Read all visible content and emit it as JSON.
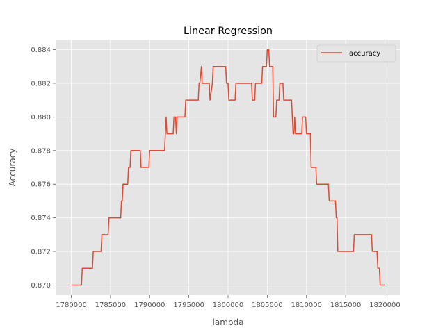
{
  "chart_data": {
    "type": "line",
    "title": "Linear Regression",
    "xlabel": "lambda",
    "ylabel": "Accuracy",
    "xlim": [
      1778000,
      1822000
    ],
    "ylim": [
      0.8694,
      0.8846
    ],
    "x_ticks": [
      1780000,
      1785000,
      1790000,
      1795000,
      1800000,
      1805000,
      1810000,
      1815000,
      1820000
    ],
    "x_tick_labels": [
      "1780000",
      "1785000",
      "1790000",
      "1795000",
      "1800000",
      "1805000",
      "1810000",
      "1815000",
      "1820000"
    ],
    "y_ticks": [
      0.87,
      0.872,
      0.874,
      0.876,
      0.878,
      0.88,
      0.882,
      0.884
    ],
    "y_tick_labels": [
      "0.870",
      "0.872",
      "0.874",
      "0.876",
      "0.878",
      "0.880",
      "0.882",
      "0.884"
    ],
    "grid": true,
    "legend_position": "top-right",
    "series": [
      {
        "name": "accuracy",
        "color": "#E24A33",
        "x": [
          1780000,
          1781300,
          1781400,
          1782700,
          1782800,
          1783800,
          1783900,
          1784700,
          1784800,
          1786300,
          1786400,
          1786500,
          1786600,
          1787200,
          1787300,
          1787500,
          1787600,
          1788800,
          1788900,
          1789900,
          1790000,
          1791900,
          1792000,
          1792100,
          1792200,
          1792300,
          1793000,
          1793100,
          1793300,
          1793400,
          1793500,
          1793600,
          1794500,
          1794600,
          1796200,
          1796300,
          1796400,
          1796600,
          1796700,
          1796900,
          1797000,
          1797600,
          1797700,
          1798000,
          1798100,
          1799700,
          1799800,
          1800000,
          1800100,
          1800900,
          1801000,
          1803000,
          1803100,
          1803400,
          1803500,
          1804300,
          1804400,
          1804900,
          1805000,
          1805200,
          1805300,
          1805700,
          1805800,
          1806100,
          1806200,
          1806500,
          1806600,
          1807000,
          1807100,
          1808100,
          1808200,
          1808300,
          1808400,
          1808500,
          1808600,
          1809400,
          1809500,
          1809900,
          1810000,
          1810500,
          1810600,
          1811200,
          1811300,
          1812800,
          1812900,
          1813700,
          1813800,
          1813900,
          1814000,
          1816000,
          1816100,
          1818300,
          1818400,
          1819000,
          1819100,
          1819300,
          1819400,
          1820000
        ],
        "values": [
          0.87,
          0.87,
          0.871,
          0.871,
          0.872,
          0.872,
          0.873,
          0.873,
          0.874,
          0.874,
          0.875,
          0.875,
          0.876,
          0.876,
          0.877,
          0.877,
          0.878,
          0.878,
          0.877,
          0.877,
          0.878,
          0.878,
          0.879,
          0.88,
          0.879,
          0.879,
          0.879,
          0.88,
          0.88,
          0.879,
          0.88,
          0.88,
          0.88,
          0.881,
          0.881,
          0.882,
          0.882,
          0.883,
          0.882,
          0.882,
          0.882,
          0.882,
          0.881,
          0.882,
          0.883,
          0.883,
          0.882,
          0.882,
          0.881,
          0.881,
          0.882,
          0.882,
          0.881,
          0.881,
          0.882,
          0.882,
          0.883,
          0.883,
          0.884,
          0.884,
          0.883,
          0.883,
          0.88,
          0.88,
          0.881,
          0.881,
          0.882,
          0.882,
          0.881,
          0.881,
          0.88,
          0.879,
          0.879,
          0.88,
          0.879,
          0.879,
          0.88,
          0.88,
          0.879,
          0.879,
          0.877,
          0.877,
          0.876,
          0.876,
          0.875,
          0.875,
          0.874,
          0.874,
          0.872,
          0.872,
          0.873,
          0.873,
          0.872,
          0.872,
          0.871,
          0.871,
          0.87,
          0.87
        ]
      }
    ]
  }
}
